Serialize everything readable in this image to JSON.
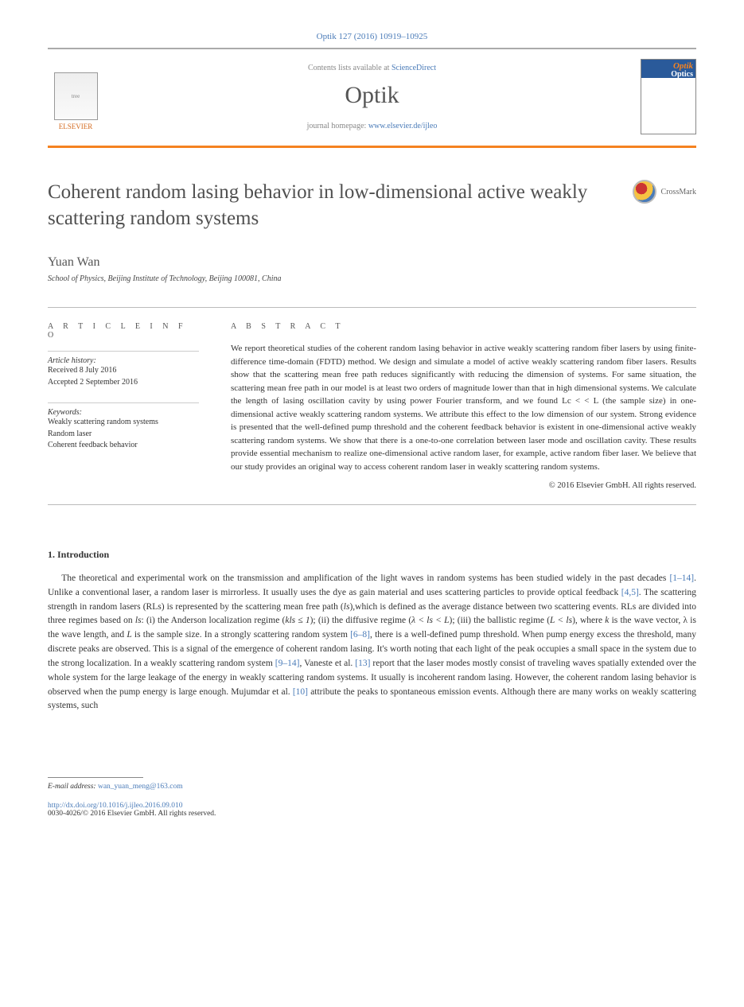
{
  "citation": "Optik 127 (2016) 10919–10925",
  "publisher": "ELSEVIER",
  "contents_prefix": "Contents lists available at ",
  "contents_link": "ScienceDirect",
  "journal_name": "Optik",
  "homepage_prefix": "journal homepage: ",
  "homepage_link": "www.elsevier.de/ijleo",
  "crossmark_label": "CrossMark",
  "title": "Coherent random lasing behavior in low-dimensional active weakly scattering random systems",
  "author": "Yuan Wan",
  "affiliation": "School of Physics, Beijing Institute of Technology, Beijing 100081, China",
  "article_info_heading": "a r t i c l e   i n f o",
  "abstract_heading": "a b s t r a c t",
  "history_label": "Article history:",
  "history_received": "Received 8 July 2016",
  "history_accepted": "Accepted 2 September 2016",
  "keywords_label": "Keywords:",
  "keyword1": "Weakly scattering random systems",
  "keyword2": "Random laser",
  "keyword3": "Coherent feedback behavior",
  "abstract_text": "We report theoretical studies of the coherent random lasing behavior in active weakly scattering random fiber lasers by using finite-difference time-domain (FDTD) method. We design and simulate a model of active weakly scattering random fiber lasers. Results show that the scattering mean free path reduces significantly with reducing the dimension of systems. For same situation, the scattering mean free path in our model is at least two orders of magnitude lower than that in high dimensional systems. We calculate the length of lasing oscillation cavity by using power Fourier transform, and we found Lc < < L (the sample size) in one-dimensional active weakly scattering random systems. We attribute this effect to the low dimension of our system. Strong evidence is presented that the well-defined pump threshold and the coherent feedback behavior is existent in one-dimensional active weakly scattering random systems. We show that there is a one-to-one correlation between laser mode and oscillation cavity. These results provide essential mechanism to realize one-dimensional active random laser, for example, active random fiber laser. We believe that our study provides an original way to access coherent random laser in weakly scattering random systems.",
  "copyright_abs": "© 2016 Elsevier GmbH. All rights reserved.",
  "section1_heading": "1.  Introduction",
  "intro_para_pre": "The theoretical and experimental work on the transmission and amplification of the light waves in random systems has been studied widely in the past decades ",
  "ref_1_14": "[1–14]",
  "intro_seg2": ". Unlike a conventional laser, a random laser is mirrorless. It usually uses the dye as gain material and uses scattering particles to provide optical feedback ",
  "ref_4_5": "[4,5]",
  "intro_seg3_a": ". The scattering strength in random lasers (RLs) is represented by the scattering mean free path (",
  "ls_var": "ls",
  "intro_seg3_b": "),which is defined as the average distance between two scattering events. RLs are divided into three regimes based on ",
  "intro_seg3_c": ": (i) the Anderson localization regime (",
  "regime1": "kls ≤ 1",
  "intro_seg3_d": "); (ii) the diffusive regime (",
  "regime2": "λ < ls < L",
  "intro_seg3_e": "); (iii) the ballistic regime (",
  "regime3": "L < ls",
  "intro_seg3_f": "), where ",
  "k_var": "k",
  "intro_seg3_g": " is the wave vector, λ is the wave length, and ",
  "L_var": "L",
  "intro_seg3_h": " is the sample size. In a strongly scattering random system ",
  "ref_6_8": "[6–8]",
  "intro_seg4": ", there is a well-defined pump threshold. When pump energy excess the threshold, many discrete peaks are observed. This is a signal of the emergence of coherent random lasing. It's worth noting that each light of the peak occupies a small space in the system due to the strong localization. In a weakly scattering random system ",
  "ref_9_14": "[9–14]",
  "intro_seg5": ", Vaneste et al. ",
  "ref_13": "[13]",
  "intro_seg6": " report that the laser modes mostly consist of traveling waves spatially extended over the whole system for the large leakage of the energy in weakly scattering random systems. It usually is incoherent random lasing. However, the coherent random lasing behavior is observed when the pump energy is large enough. Mujumdar et al. ",
  "ref_10": "[10]",
  "intro_seg7": " attribute the peaks to spontaneous emission events. Although there are many works on weakly scattering systems, such",
  "email_label": "E-mail address: ",
  "email": "wan_yuan_meng@163.com",
  "doi": "http://dx.doi.org/10.1016/j.ijleo.2016.09.010",
  "issn_copy": "0030-4026/© 2016 Elsevier GmbH. All rights reserved.",
  "colors": {
    "link": "#4a7bb8",
    "orange": "#f58220",
    "text": "#333333",
    "heading": "#505050"
  }
}
